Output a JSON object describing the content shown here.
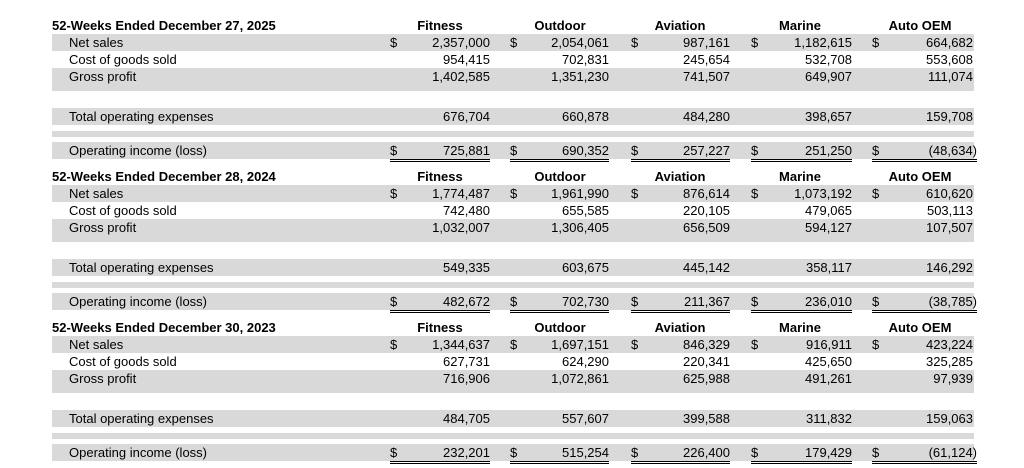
{
  "columns": [
    "Fitness",
    "Outdoor",
    "Aviation",
    "Marine",
    "Auto OEM"
  ],
  "currency_symbol": "$",
  "periods": [
    {
      "title": "52-Weeks Ended December 27, 2025",
      "net_sales_label": "Net sales",
      "net_sales": [
        "2,357,000",
        "2,054,061",
        "987,161",
        "1,182,615",
        "664,682"
      ],
      "cogs_label": "Cost of goods sold",
      "cogs": [
        "954,415",
        "702,831",
        "245,654",
        "532,708",
        "553,608"
      ],
      "gross_profit_label": "Gross profit",
      "gross_profit": [
        "1,402,585",
        "1,351,230",
        "741,507",
        "649,907",
        "111,074"
      ],
      "opex_label": "Total operating expenses",
      "opex": [
        "676,704",
        "660,878",
        "484,280",
        "398,657",
        "159,708"
      ],
      "op_income_label": "Operating income (loss)",
      "op_income": [
        "725,881",
        "690,352",
        "257,227",
        "251,250",
        "(48,634)"
      ]
    },
    {
      "title": "52-Weeks Ended December 28, 2024",
      "net_sales_label": "Net sales",
      "net_sales": [
        "1,774,487",
        "1,961,990",
        "876,614",
        "1,073,192",
        "610,620"
      ],
      "cogs_label": "Cost of goods sold",
      "cogs": [
        "742,480",
        "655,585",
        "220,105",
        "479,065",
        "503,113"
      ],
      "gross_profit_label": "Gross profit",
      "gross_profit": [
        "1,032,007",
        "1,306,405",
        "656,509",
        "594,127",
        "107,507"
      ],
      "opex_label": "Total operating expenses",
      "opex": [
        "549,335",
        "603,675",
        "445,142",
        "358,117",
        "146,292"
      ],
      "op_income_label": "Operating income (loss)",
      "op_income": [
        "482,672",
        "702,730",
        "211,367",
        "236,010",
        "(38,785)"
      ]
    },
    {
      "title": "52-Weeks Ended December 30, 2023",
      "net_sales_label": "Net sales",
      "net_sales": [
        "1,344,637",
        "1,697,151",
        "846,329",
        "916,911",
        "423,224"
      ],
      "cogs_label": "Cost of goods sold",
      "cogs": [
        "627,731",
        "624,290",
        "220,341",
        "425,650",
        "325,285"
      ],
      "gross_profit_label": "Gross profit",
      "gross_profit": [
        "716,906",
        "1,072,861",
        "625,988",
        "491,261",
        "97,939"
      ],
      "opex_label": "Total operating expenses",
      "opex": [
        "484,705",
        "557,607",
        "399,588",
        "311,832",
        "159,063"
      ],
      "op_income_label": "Operating income (loss)",
      "op_income": [
        "232,201",
        "515,254",
        "226,400",
        "179,429",
        "(61,124)"
      ]
    }
  ]
}
